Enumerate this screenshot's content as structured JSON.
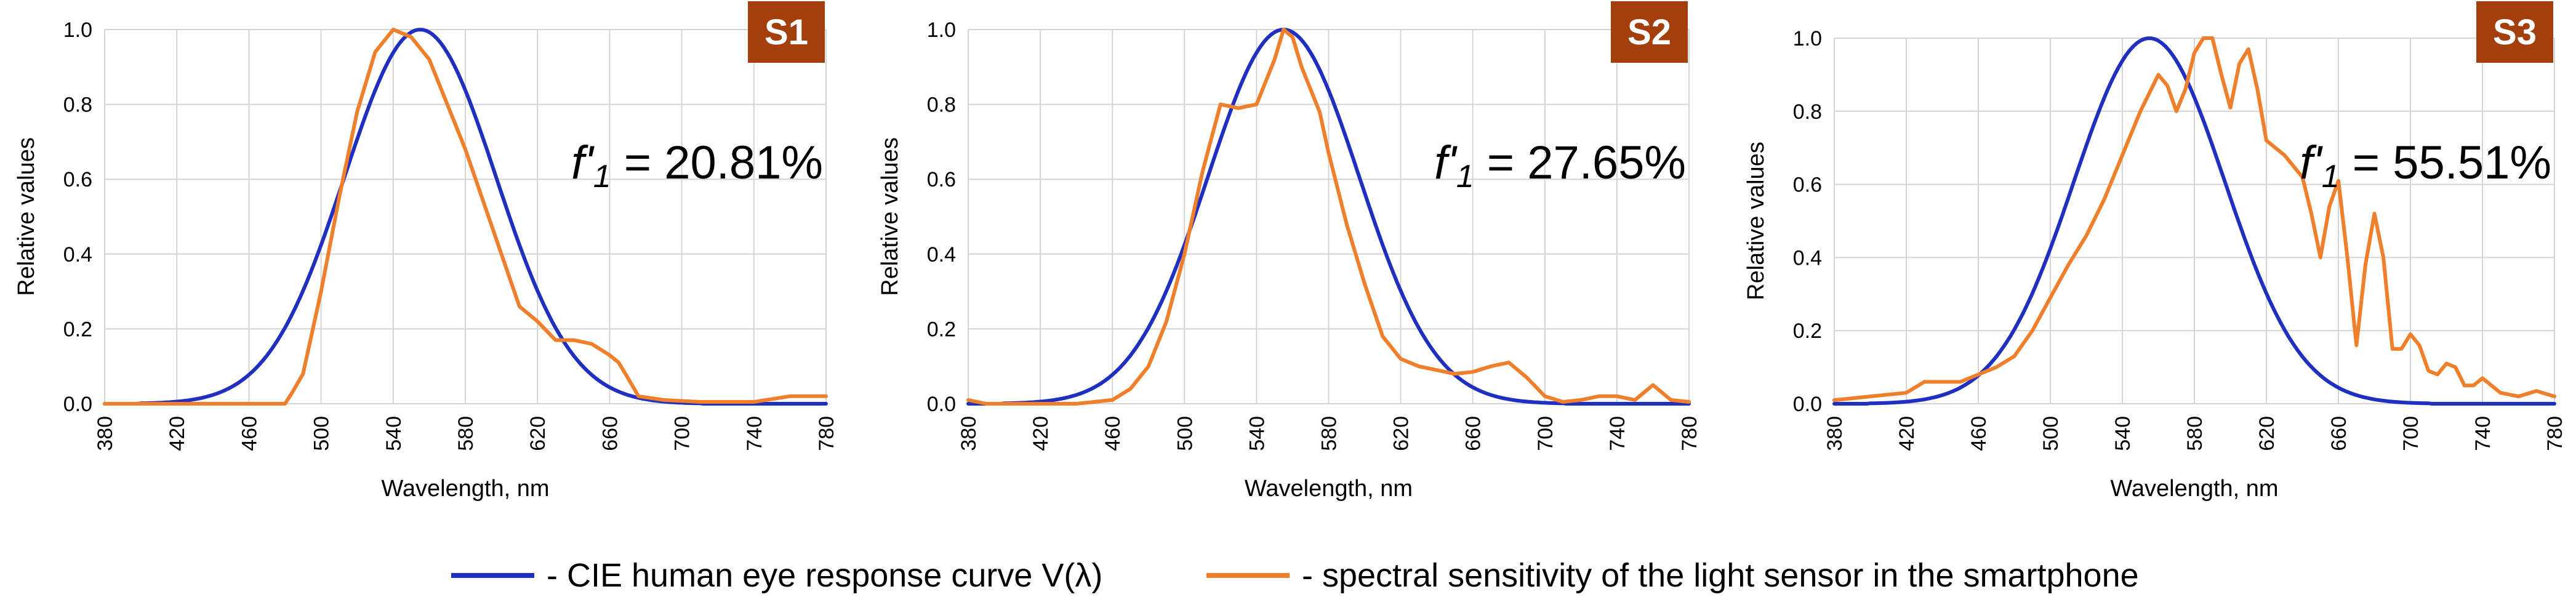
{
  "chart_data": [
    {
      "type": "line",
      "badge": "S1",
      "f1_value": "20.81%",
      "xlabel": "Wavelength, nm",
      "ylabel": "Relative values",
      "xlim": [
        380,
        780
      ],
      "ylim": [
        0,
        1.0
      ],
      "x_ticks": [
        "380",
        "420",
        "460",
        "500",
        "540",
        "580",
        "620",
        "660",
        "700",
        "740",
        "780"
      ],
      "y_ticks": [
        "0.0",
        "0.2",
        "0.4",
        "0.6",
        "0.8",
        "1.0"
      ],
      "series": [
        {
          "name": "CIE human eye response curve V(λ)",
          "color": "#1f2fbf",
          "ref": "cie"
        },
        {
          "name": "spectral sensitivity of the light sensor in the smartphone",
          "color": "#f07f2c",
          "points": [
            [
              380,
              0
            ],
            [
              460,
              0
            ],
            [
              480,
              0
            ],
            [
              484,
              0.03
            ],
            [
              490,
              0.08
            ],
            [
              500,
              0.3
            ],
            [
              510,
              0.55
            ],
            [
              520,
              0.78
            ],
            [
              530,
              0.94
            ],
            [
              540,
              1.0
            ],
            [
              550,
              0.98
            ],
            [
              560,
              0.92
            ],
            [
              570,
              0.8
            ],
            [
              580,
              0.68
            ],
            [
              590,
              0.54
            ],
            [
              600,
              0.4
            ],
            [
              610,
              0.26
            ],
            [
              620,
              0.22
            ],
            [
              630,
              0.17
            ],
            [
              640,
              0.17
            ],
            [
              650,
              0.16
            ],
            [
              660,
              0.13
            ],
            [
              665,
              0.11
            ],
            [
              670,
              0.07
            ],
            [
              676,
              0.02
            ],
            [
              690,
              0.01
            ],
            [
              710,
              0.005
            ],
            [
              740,
              0.005
            ],
            [
              760,
              0.02
            ],
            [
              780,
              0.02
            ]
          ]
        }
      ]
    },
    {
      "type": "line",
      "badge": "S2",
      "f1_value": "27.65%",
      "xlabel": "Wavelength, nm",
      "ylabel": "Relative values",
      "xlim": [
        380,
        780
      ],
      "ylim": [
        0,
        1.0
      ],
      "x_ticks": [
        "380",
        "420",
        "460",
        "500",
        "540",
        "580",
        "620",
        "660",
        "700",
        "740",
        "780"
      ],
      "y_ticks": [
        "0.0",
        "0.2",
        "0.4",
        "0.6",
        "0.8",
        "1.0"
      ],
      "series": [
        {
          "name": "CIE human eye response curve V(λ)",
          "color": "#1f2fbf",
          "ref": "cie"
        },
        {
          "name": "spectral sensitivity of the light sensor in the smartphone",
          "color": "#f07f2c",
          "points": [
            [
              380,
              0.01
            ],
            [
              390,
              0
            ],
            [
              440,
              0
            ],
            [
              460,
              0.01
            ],
            [
              470,
              0.04
            ],
            [
              480,
              0.1
            ],
            [
              490,
              0.22
            ],
            [
              500,
              0.4
            ],
            [
              510,
              0.62
            ],
            [
              520,
              0.8
            ],
            [
              530,
              0.79
            ],
            [
              540,
              0.8
            ],
            [
              550,
              0.92
            ],
            [
              555,
              1.0
            ],
            [
              560,
              0.98
            ],
            [
              565,
              0.9
            ],
            [
              570,
              0.84
            ],
            [
              575,
              0.78
            ],
            [
              580,
              0.67
            ],
            [
              590,
              0.48
            ],
            [
              600,
              0.32
            ],
            [
              610,
              0.18
            ],
            [
              620,
              0.12
            ],
            [
              630,
              0.1
            ],
            [
              640,
              0.09
            ],
            [
              650,
              0.08
            ],
            [
              660,
              0.085
            ],
            [
              670,
              0.1
            ],
            [
              680,
              0.11
            ],
            [
              690,
              0.07
            ],
            [
              700,
              0.02
            ],
            [
              710,
              0.005
            ],
            [
              720,
              0.01
            ],
            [
              730,
              0.02
            ],
            [
              740,
              0.02
            ],
            [
              750,
              0.01
            ],
            [
              760,
              0.05
            ],
            [
              770,
              0.01
            ],
            [
              780,
              0.005
            ]
          ]
        }
      ]
    },
    {
      "type": "line",
      "badge": "S3",
      "f1_value": "55.51%",
      "xlabel": "Wavelength, nm",
      "ylabel": "Relative values",
      "xlim": [
        380,
        780
      ],
      "ylim": [
        0,
        1.0
      ],
      "x_ticks": [
        "380",
        "420",
        "460",
        "500",
        "540",
        "580",
        "620",
        "660",
        "700",
        "740",
        "780"
      ],
      "y_ticks": [
        "0.0",
        "0.2",
        "0.4",
        "0.6",
        "0.8",
        "1.0"
      ],
      "series": [
        {
          "name": "CIE human eye response curve V(λ)",
          "color": "#1f2fbf",
          "ref": "cie"
        },
        {
          "name": "spectral sensitivity of the light sensor in the smartphone",
          "color": "#f07f2c",
          "points": [
            [
              380,
              0.01
            ],
            [
              400,
              0.02
            ],
            [
              420,
              0.03
            ],
            [
              430,
              0.06
            ],
            [
              440,
              0.06
            ],
            [
              450,
              0.06
            ],
            [
              460,
              0.08
            ],
            [
              470,
              0.1
            ],
            [
              480,
              0.13
            ],
            [
              490,
              0.2
            ],
            [
              500,
              0.29
            ],
            [
              510,
              0.38
            ],
            [
              520,
              0.46
            ],
            [
              530,
              0.56
            ],
            [
              540,
              0.68
            ],
            [
              550,
              0.8
            ],
            [
              560,
              0.9
            ],
            [
              565,
              0.87
            ],
            [
              570,
              0.8
            ],
            [
              575,
              0.86
            ],
            [
              580,
              0.96
            ],
            [
              585,
              1.0
            ],
            [
              590,
              1.0
            ],
            [
              595,
              0.9
            ],
            [
              600,
              0.81
            ],
            [
              605,
              0.93
            ],
            [
              610,
              0.97
            ],
            [
              615,
              0.86
            ],
            [
              620,
              0.72
            ],
            [
              630,
              0.68
            ],
            [
              640,
              0.62
            ],
            [
              645,
              0.52
            ],
            [
              650,
              0.4
            ],
            [
              655,
              0.54
            ],
            [
              660,
              0.61
            ],
            [
              665,
              0.4
            ],
            [
              670,
              0.16
            ],
            [
              675,
              0.38
            ],
            [
              680,
              0.52
            ],
            [
              685,
              0.4
            ],
            [
              690,
              0.15
            ],
            [
              695,
              0.15
            ],
            [
              700,
              0.19
            ],
            [
              705,
              0.16
            ],
            [
              710,
              0.09
            ],
            [
              715,
              0.08
            ],
            [
              720,
              0.11
            ],
            [
              725,
              0.1
            ],
            [
              730,
              0.05
            ],
            [
              735,
              0.05
            ],
            [
              740,
              0.07
            ],
            [
              745,
              0.05
            ],
            [
              750,
              0.03
            ],
            [
              760,
              0.02
            ],
            [
              770,
              0.035
            ],
            [
              780,
              0.02
            ]
          ]
        }
      ]
    }
  ],
  "legend": {
    "cie_label": "- CIE human eye response curve V(λ)",
    "sensor_label": "- spectral sensitivity of the light sensor in the smartphone"
  }
}
